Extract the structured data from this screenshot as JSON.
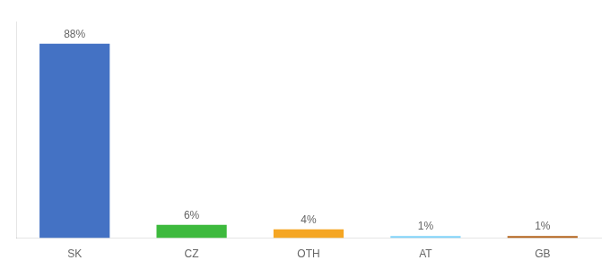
{
  "chart_data": {
    "type": "bar",
    "categories": [
      "SK",
      "CZ",
      "OTH",
      "AT",
      "GB"
    ],
    "values": [
      88,
      6,
      4,
      1,
      1
    ],
    "value_labels": [
      "88%",
      "6%",
      "4%",
      "1%",
      "1%"
    ],
    "data_labels": true,
    "colors": [
      "#4472c4",
      "#3dba3d",
      "#f5a623",
      "#81d4fa",
      "#b5651d"
    ],
    "ylim": [
      0,
      98
    ],
    "grid": false,
    "tick_labels": "x"
  }
}
